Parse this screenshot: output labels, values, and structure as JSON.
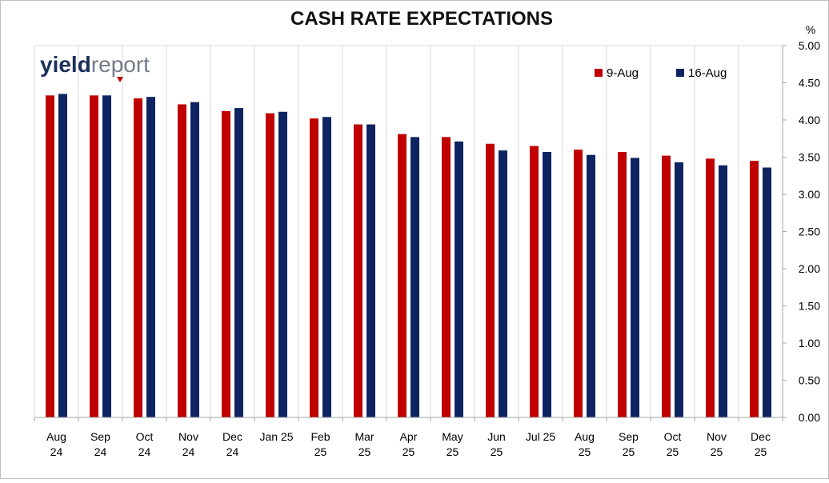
{
  "chart_data": {
    "type": "bar",
    "title": "CASH RATE EXPECTATIONS",
    "y_unit": "%",
    "ylim": [
      0,
      5
    ],
    "y_ticks": [
      "0.00",
      "0.50",
      "1.00",
      "1.50",
      "2.00",
      "2.50",
      "3.00",
      "3.50",
      "4.00",
      "4.50",
      "5.00"
    ],
    "categories": [
      [
        "Aug",
        "24"
      ],
      [
        "Sep",
        "24"
      ],
      [
        "Oct",
        "24"
      ],
      [
        "Nov",
        "24"
      ],
      [
        "Dec",
        "24"
      ],
      [
        "Jan 25"
      ],
      [
        "Feb",
        "25"
      ],
      [
        "Mar",
        "25"
      ],
      [
        "Apr",
        "25"
      ],
      [
        "May",
        "25"
      ],
      [
        "Jun",
        "25"
      ],
      [
        "Jul 25"
      ],
      [
        "Aug",
        "25"
      ],
      [
        "Sep",
        "25"
      ],
      [
        "Oct",
        "25"
      ],
      [
        "Nov",
        "25"
      ],
      [
        "Dec",
        "25"
      ]
    ],
    "series": [
      {
        "name": "9-Aug",
        "color": "#c00000",
        "values": [
          4.33,
          4.33,
          4.29,
          4.21,
          4.12,
          4.09,
          4.02,
          3.94,
          3.81,
          3.77,
          3.68,
          3.65,
          3.6,
          3.57,
          3.52,
          3.48,
          3.45
        ]
      },
      {
        "name": "16-Aug",
        "color": "#0e2461",
        "values": [
          4.35,
          4.33,
          4.31,
          4.24,
          4.16,
          4.11,
          4.04,
          3.94,
          3.77,
          3.71,
          3.59,
          3.57,
          3.53,
          3.49,
          3.43,
          3.39,
          3.36
        ]
      }
    ],
    "grid": "vertical",
    "legend_position": "top-right"
  },
  "logo": {
    "part1": "yield",
    "part2": "report",
    "accent_color": "#c00000"
  }
}
